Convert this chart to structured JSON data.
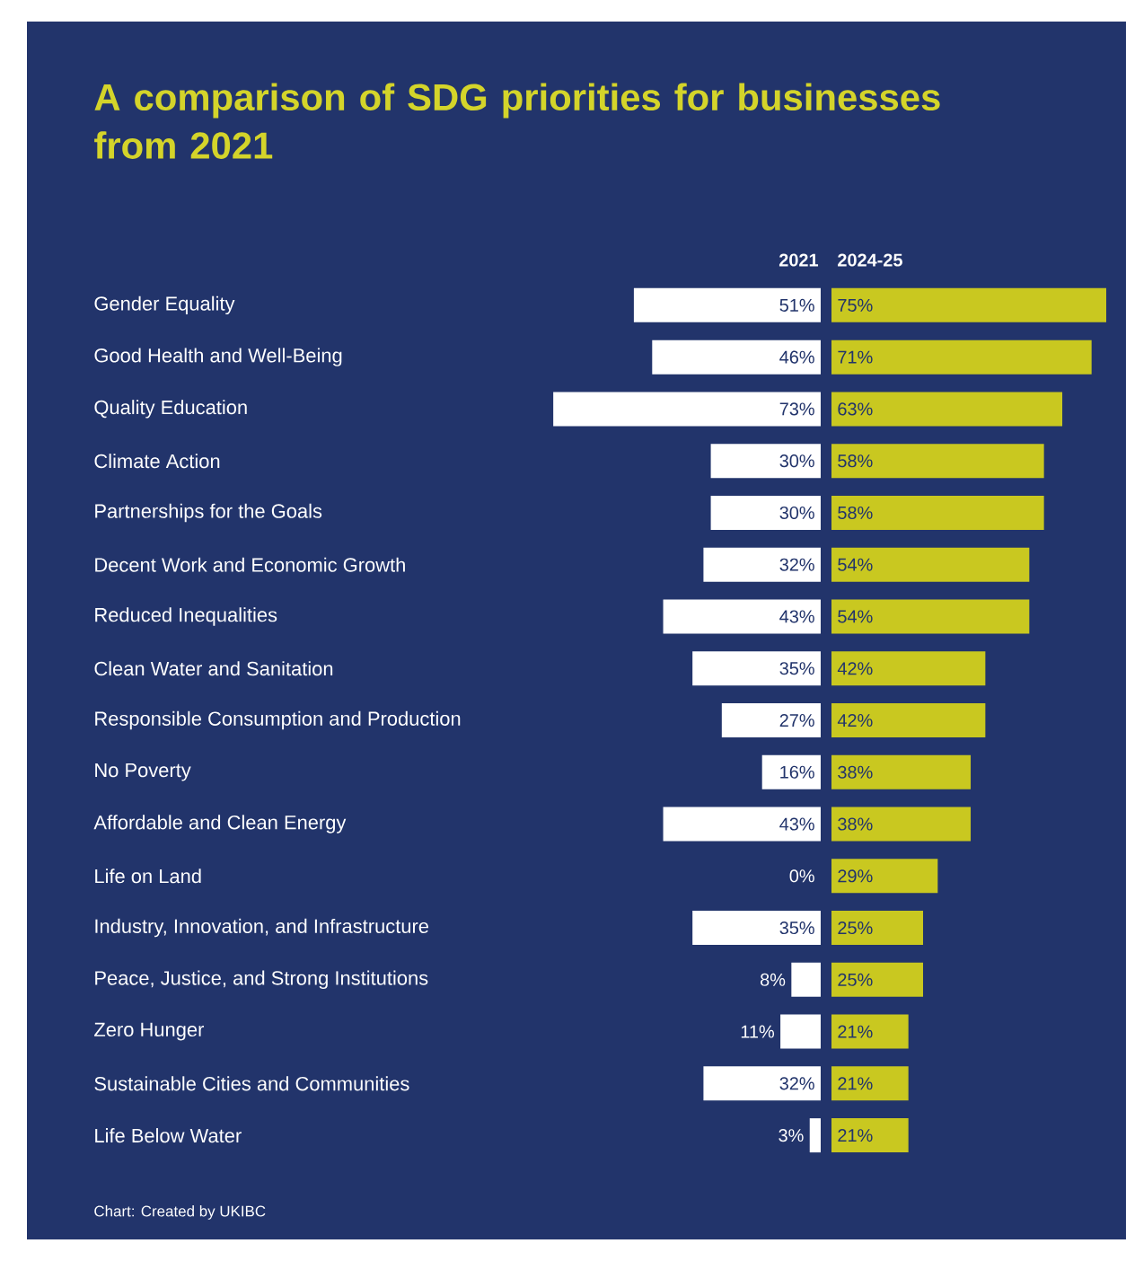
{
  "chart_data": [
    {
      "type": "bar",
      "orientation": "horizontal",
      "title": "A comparison of SDG priorities for businesses from 2021",
      "annotations": [
        "Chart: Created by UKIBC"
      ],
      "categories": [
        "Gender Equality",
        "Good Health and Well-Being",
        "Quality Education",
        "Climate Action",
        "Partnerships for the Goals",
        "Decent Work and Economic Growth",
        "Reduced Inequalities",
        "Clean Water and Sanitation",
        "Responsible Consumption and Production",
        "No Poverty",
        "Affordable and Clean Energy",
        "Life on Land",
        "Industry, Innovation, and Infrastructure",
        "Peace, Justice, and Strong Institutions",
        "Zero Hunger",
        "Sustainable Cities and Communities",
        "Life Below Water"
      ],
      "tick_labels": "y",
      "series": [
        {
          "name": "2021",
          "color": "#ffffff",
          "values": [
            51,
            46,
            73,
            30,
            30,
            32,
            43,
            35,
            27,
            16,
            43,
            0,
            35,
            8,
            11,
            32,
            3
          ],
          "value_labels": [
            "51%",
            "46%",
            "73%",
            "30%",
            "30%",
            "32%",
            "43%",
            "35%",
            "27%",
            "16%",
            "43%",
            "0%",
            "35%",
            "8%",
            "11%",
            "32%",
            "3%"
          ]
        }
      ]
    },
    {
      "type": "bar",
      "orientation": "horizontal",
      "categories": [
        null,
        null,
        null,
        null,
        null,
        null,
        null,
        null,
        null,
        null,
        null,
        null,
        null,
        null,
        null,
        null,
        null
      ],
      "tick_labels": false,
      "series": [
        {
          "name": "2024-25",
          "color": "#c9c820",
          "values": [
            75,
            71,
            63,
            58,
            58,
            54,
            54,
            42,
            42,
            38,
            38,
            29,
            25,
            25,
            21,
            21,
            21
          ],
          "value_labels": [
            "75%",
            "71%",
            "63%",
            "58%",
            "58%",
            "54%",
            "54%",
            "42%",
            "42%",
            "38%",
            "38%",
            "29%",
            "25%",
            "25%",
            "21%",
            "21%",
            "21%"
          ]
        }
      ]
    }
  ]
}
